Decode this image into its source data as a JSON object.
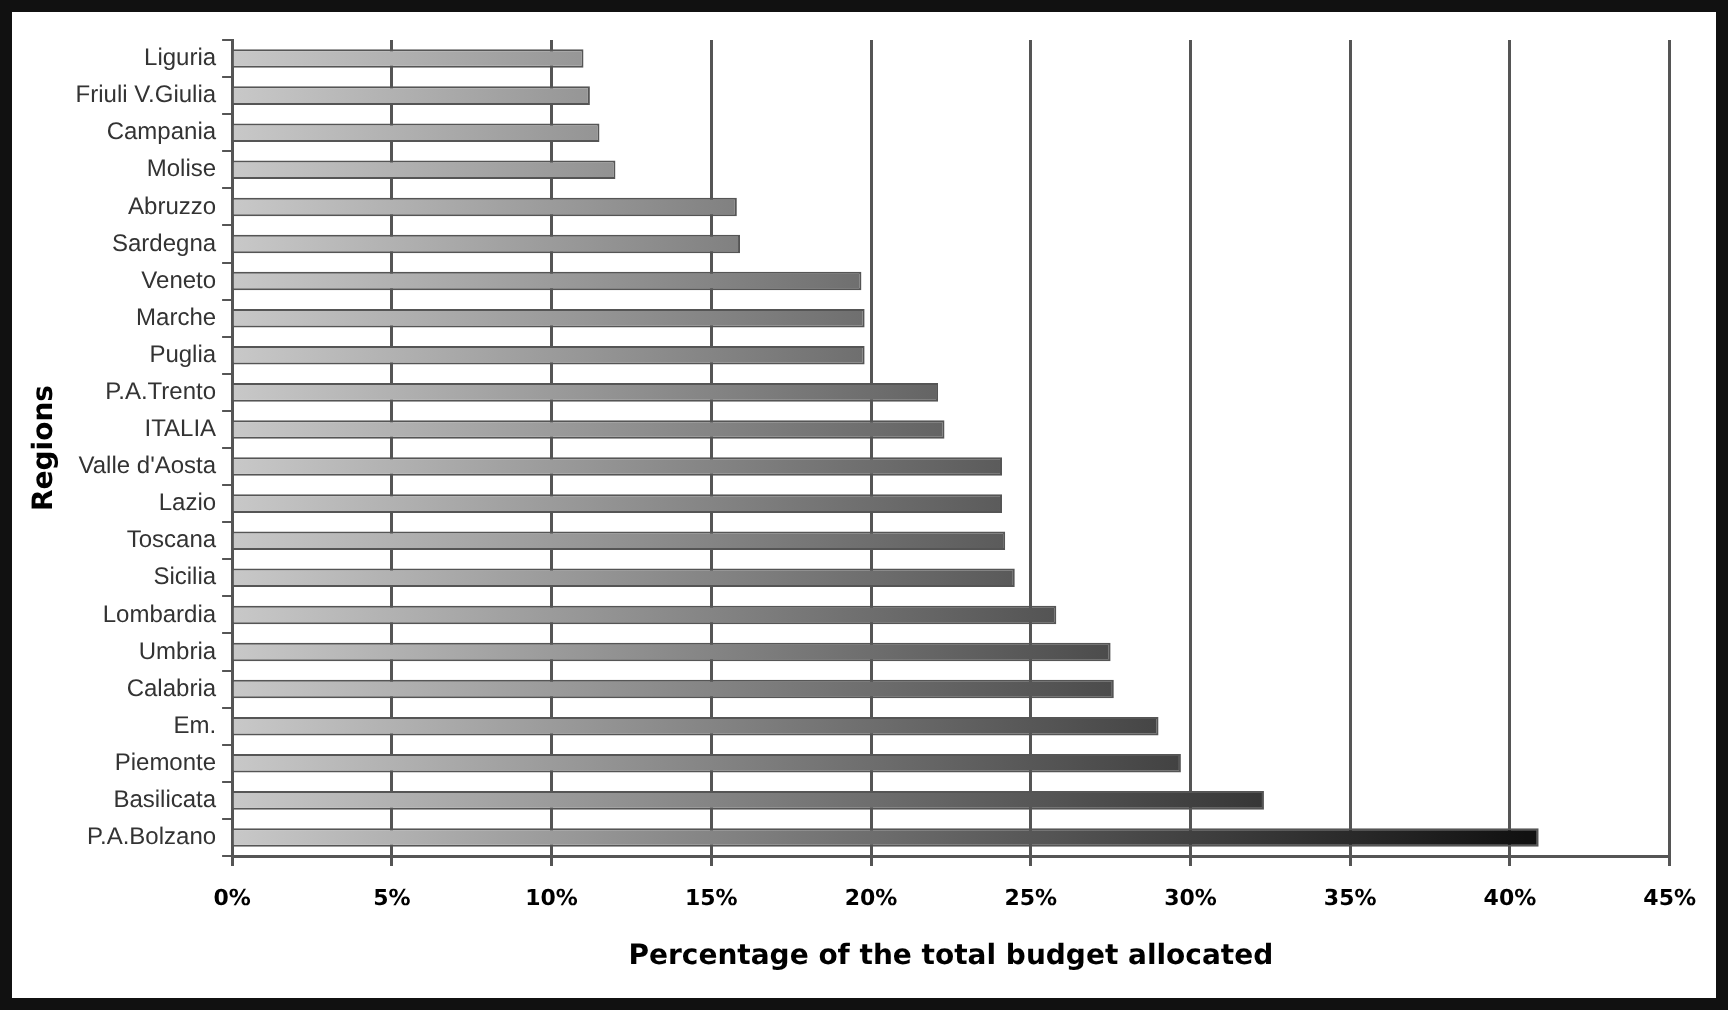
{
  "chart_data": {
    "type": "bar",
    "orientation": "horizontal",
    "xlabel": "Percentage of the total budget allocated",
    "ylabel": "Regions",
    "categories": [
      "Liguria",
      "Friuli V.Giulia",
      "Campania",
      "Molise",
      "Abruzzo",
      "Sardegna",
      "Veneto",
      "Marche",
      "Puglia",
      "P.A.Trento",
      "ITALIA",
      "Valle d'Aosta",
      "Lazio",
      "Toscana",
      "Sicilia",
      "Lombardia",
      "Umbria",
      "Calabria",
      "Em.",
      "Piemonte",
      "Basilicata",
      "P.A.Bolzano"
    ],
    "values": [
      11.0,
      11.2,
      11.5,
      12.0,
      15.8,
      15.9,
      19.7,
      19.8,
      19.8,
      22.1,
      22.3,
      24.1,
      24.1,
      24.2,
      24.5,
      25.8,
      27.5,
      27.6,
      29.0,
      29.7,
      32.3,
      40.9
    ],
    "color": "#111111",
    "xlim": [
      0,
      45
    ],
    "xticks": [
      {
        "value": 0,
        "label": "0%"
      },
      {
        "value": 5,
        "label": "5%"
      },
      {
        "value": 10,
        "label": "10%"
      },
      {
        "value": 15,
        "label": "15%"
      },
      {
        "value": 20,
        "label": "20%"
      },
      {
        "value": 25,
        "label": "25%"
      },
      {
        "value": 30,
        "label": "30%"
      },
      {
        "value": 35,
        "label": "35%"
      },
      {
        "value": 40,
        "label": "40%"
      },
      {
        "value": 45,
        "label": "45%"
      }
    ],
    "grid": "x"
  }
}
